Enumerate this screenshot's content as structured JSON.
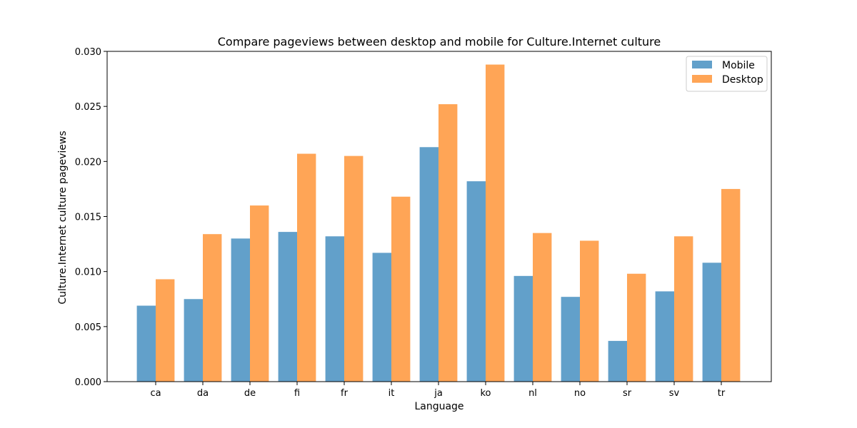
{
  "chart_data": {
    "type": "bar",
    "title": "Compare pageviews between desktop and mobile for Culture.Internet culture",
    "xlabel": "Language",
    "ylabel": "Culture.Internet culture pageviews",
    "categories": [
      "ca",
      "da",
      "de",
      "fi",
      "fr",
      "it",
      "ja",
      "ko",
      "nl",
      "no",
      "sr",
      "sv",
      "tr"
    ],
    "series": [
      {
        "name": "Mobile",
        "color": "#1f77b4",
        "values": [
          0.0069,
          0.0075,
          0.013,
          0.0136,
          0.0132,
          0.0117,
          0.0213,
          0.0182,
          0.0096,
          0.0077,
          0.0037,
          0.0082,
          0.0108
        ]
      },
      {
        "name": "Desktop",
        "color": "#ff7f0e",
        "values": [
          0.0093,
          0.0134,
          0.016,
          0.0207,
          0.0205,
          0.0168,
          0.0252,
          0.0288,
          0.0135,
          0.0128,
          0.0098,
          0.0132,
          0.0175
        ]
      }
    ],
    "ylim": [
      0,
      0.03
    ],
    "yticks": [
      "0.000",
      "0.005",
      "0.010",
      "0.015",
      "0.020",
      "0.025",
      "0.030"
    ],
    "bar_opacity": 0.7,
    "grid": false,
    "legend_position": "top-right"
  }
}
